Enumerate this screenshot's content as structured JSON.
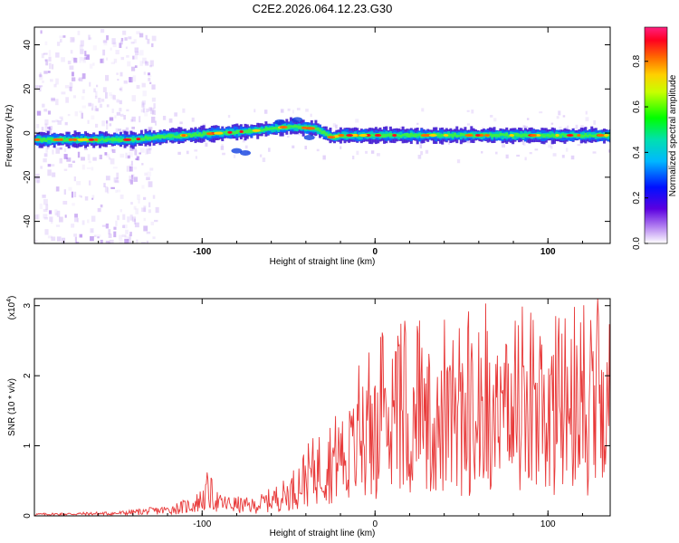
{
  "title": "C2E2.2026.064.12.23.G30",
  "chart_data": [
    {
      "type": "heatmap",
      "xlabel": "Height of straight line (km)",
      "ylabel": "Frequency (Hz)",
      "xlim": [
        -197,
        136
      ],
      "ylim": [
        -50,
        48
      ],
      "x_ticks": [
        "-100",
        "0",
        "100"
      ],
      "x_tick_values": [
        -100,
        0,
        100
      ],
      "y_ticks": [
        "40",
        "20",
        "0",
        "-20",
        "-40"
      ],
      "y_tick_values": [
        40,
        20,
        0,
        -20,
        -40
      ],
      "ridge": [
        {
          "x": -197,
          "f": -3
        },
        {
          "x": -140,
          "f": -3
        },
        {
          "x": -130,
          "f": -2
        },
        {
          "x": -110,
          "f": -1
        },
        {
          "x": -90,
          "f": 0
        },
        {
          "x": -70,
          "f": 1
        },
        {
          "x": -50,
          "f": 3
        },
        {
          "x": -35,
          "f": 2
        },
        {
          "x": -25,
          "f": -2
        },
        {
          "x": -20,
          "f": -1
        },
        {
          "x": 0,
          "f": -1
        },
        {
          "x": 40,
          "f": -1
        },
        {
          "x": 80,
          "f": -1
        },
        {
          "x": 136,
          "f": -1
        }
      ],
      "colorbar": {
        "label": "Normalized spectral amplitude",
        "ticks": [
          "0.0",
          "0.2",
          "0.4",
          "0.6",
          "0.8"
        ],
        "tick_values": [
          0.0,
          0.2,
          0.4,
          0.6,
          0.8
        ],
        "range": [
          0,
          0.95
        ]
      }
    },
    {
      "type": "line",
      "xlabel": "Height of straight line (km)",
      "ylabel": "SNR (10 * v/v)",
      "y_scale_label": "(x10",
      "y_scale_exp": "4",
      "y_scale_close": ")",
      "xlim": [
        -197,
        136
      ],
      "ylim": [
        0,
        3.1
      ],
      "x_ticks": [
        "-100",
        "0",
        "100"
      ],
      "x_tick_values": [
        -100,
        0,
        100
      ],
      "y_ticks": [
        "0",
        "1",
        "2",
        "3"
      ],
      "y_tick_values": [
        0,
        1,
        2,
        3
      ],
      "color": "#e83a3a",
      "envelope": [
        {
          "x": -197,
          "y": 0.03
        },
        {
          "x": -150,
          "y": 0.05
        },
        {
          "x": -120,
          "y": 0.12
        },
        {
          "x": -105,
          "y": 0.22
        },
        {
          "x": -95,
          "y": 0.45
        },
        {
          "x": -90,
          "y": 0.25
        },
        {
          "x": -70,
          "y": 0.2
        },
        {
          "x": -50,
          "y": 0.45
        },
        {
          "x": -40,
          "y": 0.8
        },
        {
          "x": -25,
          "y": 1.15
        },
        {
          "x": -10,
          "y": 1.35
        },
        {
          "x": 0,
          "y": 1.5
        },
        {
          "x": 20,
          "y": 1.7
        },
        {
          "x": 40,
          "y": 1.75
        },
        {
          "x": 60,
          "y": 1.8
        },
        {
          "x": 80,
          "y": 1.85
        },
        {
          "x": 100,
          "y": 1.75
        },
        {
          "x": 120,
          "y": 1.8
        },
        {
          "x": 136,
          "y": 1.75
        }
      ],
      "peaks": [
        {
          "x": -97,
          "y": 0.62
        },
        {
          "x": 25,
          "y": 2.6
        },
        {
          "x": 40,
          "y": 2.8
        },
        {
          "x": 60,
          "y": 2.62
        },
        {
          "x": 83,
          "y": 2.72
        },
        {
          "x": 90,
          "y": 2.9
        },
        {
          "x": 110,
          "y": 2.82
        },
        {
          "x": 129,
          "y": 3.1
        }
      ]
    }
  ]
}
